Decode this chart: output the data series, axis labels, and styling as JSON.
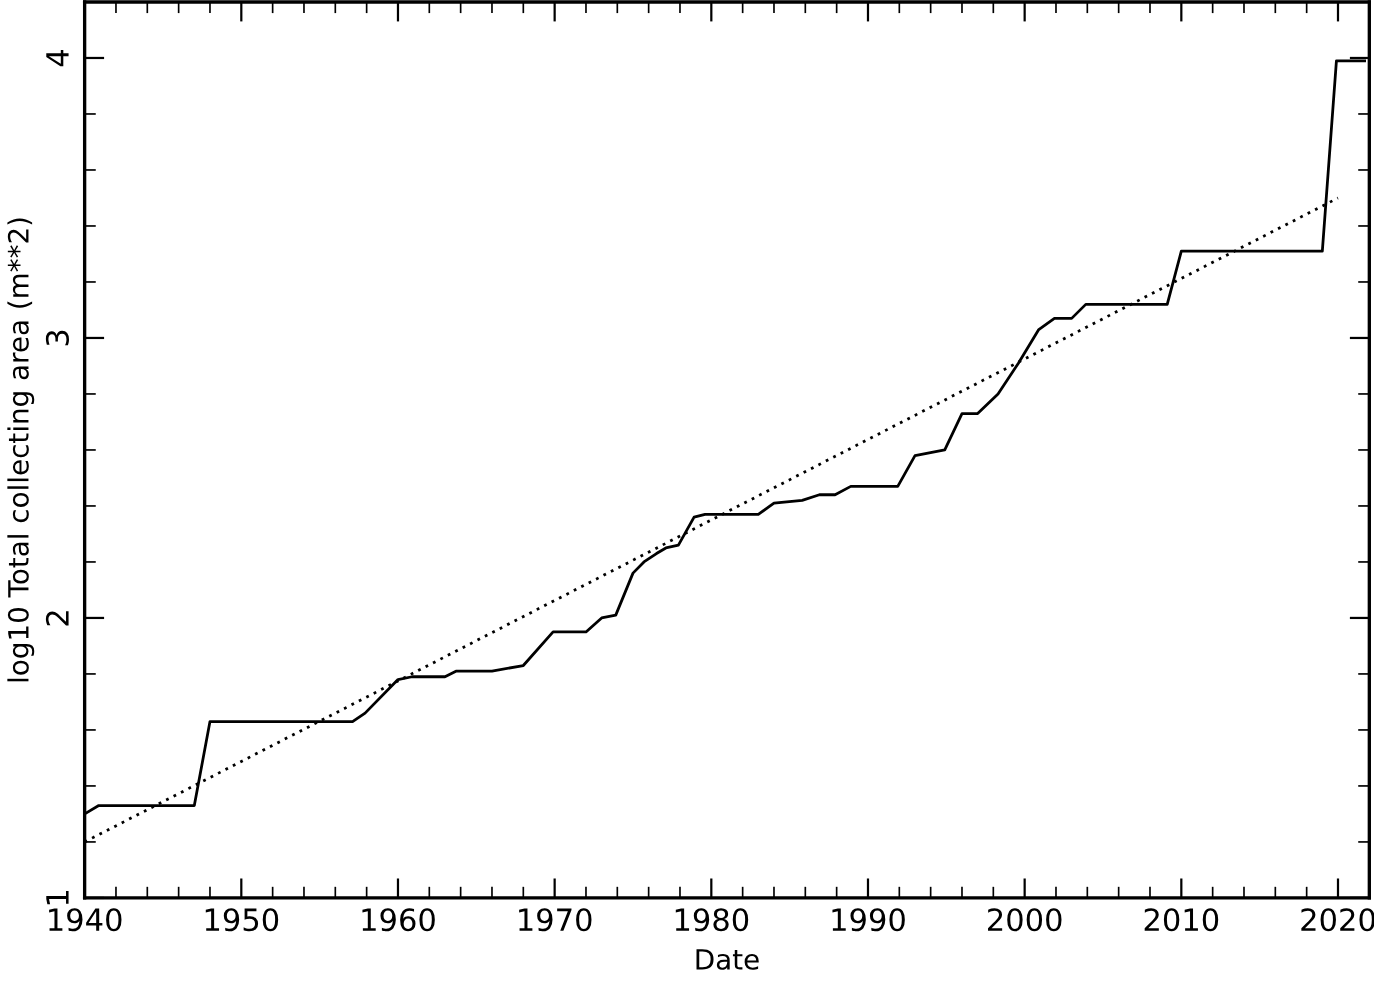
{
  "chart_data": {
    "type": "line",
    "xlabel": "Date",
    "ylabel": "log10 Total collecting area (m**2)",
    "xlim": [
      1940,
      2022
    ],
    "ylim": [
      1,
      4.2
    ],
    "xticks": [
      1940,
      {
        "value": 1942,
        "label": null
      },
      {
        "value": 1944,
        "label": null
      },
      {
        "value": 1946,
        "label": null
      },
      {
        "value": 1948,
        "label": null
      },
      1950,
      {
        "value": 1952,
        "label": null
      },
      {
        "value": 1954,
        "label": null
      },
      {
        "value": 1956,
        "label": null
      },
      {
        "value": 1958,
        "label": null
      },
      1960,
      {
        "value": 1962,
        "label": null
      },
      {
        "value": 1964,
        "label": null
      },
      {
        "value": 1966,
        "label": null
      },
      {
        "value": 1968,
        "label": null
      },
      1970,
      {
        "value": 1972,
        "label": null
      },
      {
        "value": 1974,
        "label": null
      },
      {
        "value": 1976,
        "label": null
      },
      {
        "value": 1978,
        "label": null
      },
      1980,
      {
        "value": 1982,
        "label": null
      },
      {
        "value": 1984,
        "label": null
      },
      {
        "value": 1986,
        "label": null
      },
      {
        "value": 1988,
        "label": null
      },
      1990,
      {
        "value": 1992,
        "label": null
      },
      {
        "value": 1994,
        "label": null
      },
      {
        "value": 1996,
        "label": null
      },
      {
        "value": 1998,
        "label": null
      },
      2000,
      {
        "value": 2002,
        "label": null
      },
      {
        "value": 2004,
        "label": null
      },
      {
        "value": 2006,
        "label": null
      },
      {
        "value": 2008,
        "label": null
      },
      2010,
      {
        "value": 2012,
        "label": null
      },
      {
        "value": 2014,
        "label": null
      },
      {
        "value": 2016,
        "label": null
      },
      {
        "value": 2018,
        "label": null
      },
      2020
    ],
    "yticks": [
      1,
      {
        "value": 1.2,
        "label": null
      },
      {
        "value": 1.4,
        "label": null
      },
      {
        "value": 1.6,
        "label": null
      },
      {
        "value": 1.8,
        "label": null
      },
      2,
      {
        "value": 2.2,
        "label": null
      },
      {
        "value": 2.4,
        "label": null
      },
      {
        "value": 2.6,
        "label": null
      },
      {
        "value": 2.8,
        "label": null
      },
      3,
      {
        "value": 3.2,
        "label": null
      },
      {
        "value": 3.4,
        "label": null
      },
      {
        "value": 3.6,
        "label": null
      },
      {
        "value": 3.8,
        "label": null
      },
      4,
      {
        "value": 4.2,
        "label": null
      }
    ],
    "grid": false,
    "legend": false,
    "series": [
      {
        "color": "#000000",
        "line_style": "solid",
        "x": [
          1940.0,
          1940.9,
          1947.0,
          1948.0,
          1957.1,
          1957.9,
          1960.0,
          1960.9,
          1963.0,
          1963.7,
          1966.0,
          1968.0,
          1969.9,
          1972.0,
          1973.0,
          1973.9,
          1975.0,
          1975.7,
          1976.5,
          1977.1,
          1977.9,
          1978.9,
          1979.6,
          1983.0,
          1984.0,
          1985.8,
          1986.9,
          1987.9,
          1988.9,
          1991.9,
          1993.0,
          1994.9,
          1996.0,
          1997.0,
          1998.3,
          1999.6,
          2000.9,
          2001.9,
          2003.0,
          2003.9,
          2009.1,
          2010.0,
          2019.0,
          2019.9,
          2021.7
        ],
        "values": [
          1.3,
          1.33,
          1.33,
          1.63,
          1.63,
          1.66,
          1.78,
          1.79,
          1.79,
          1.81,
          1.81,
          1.83,
          1.95,
          1.95,
          2.0,
          2.01,
          2.16,
          2.2,
          2.23,
          2.25,
          2.26,
          2.36,
          2.37,
          2.37,
          2.41,
          2.42,
          2.44,
          2.44,
          2.47,
          2.47,
          2.58,
          2.6,
          2.73,
          2.73,
          2.8,
          2.91,
          3.03,
          3.07,
          3.07,
          3.12,
          3.12,
          3.31,
          3.31,
          3.99,
          3.99
        ]
      },
      {
        "color": "#000000",
        "line_style": "dotted",
        "x": [
          1940,
          2020
        ],
        "values": [
          1.2,
          3.5
        ]
      }
    ]
  }
}
